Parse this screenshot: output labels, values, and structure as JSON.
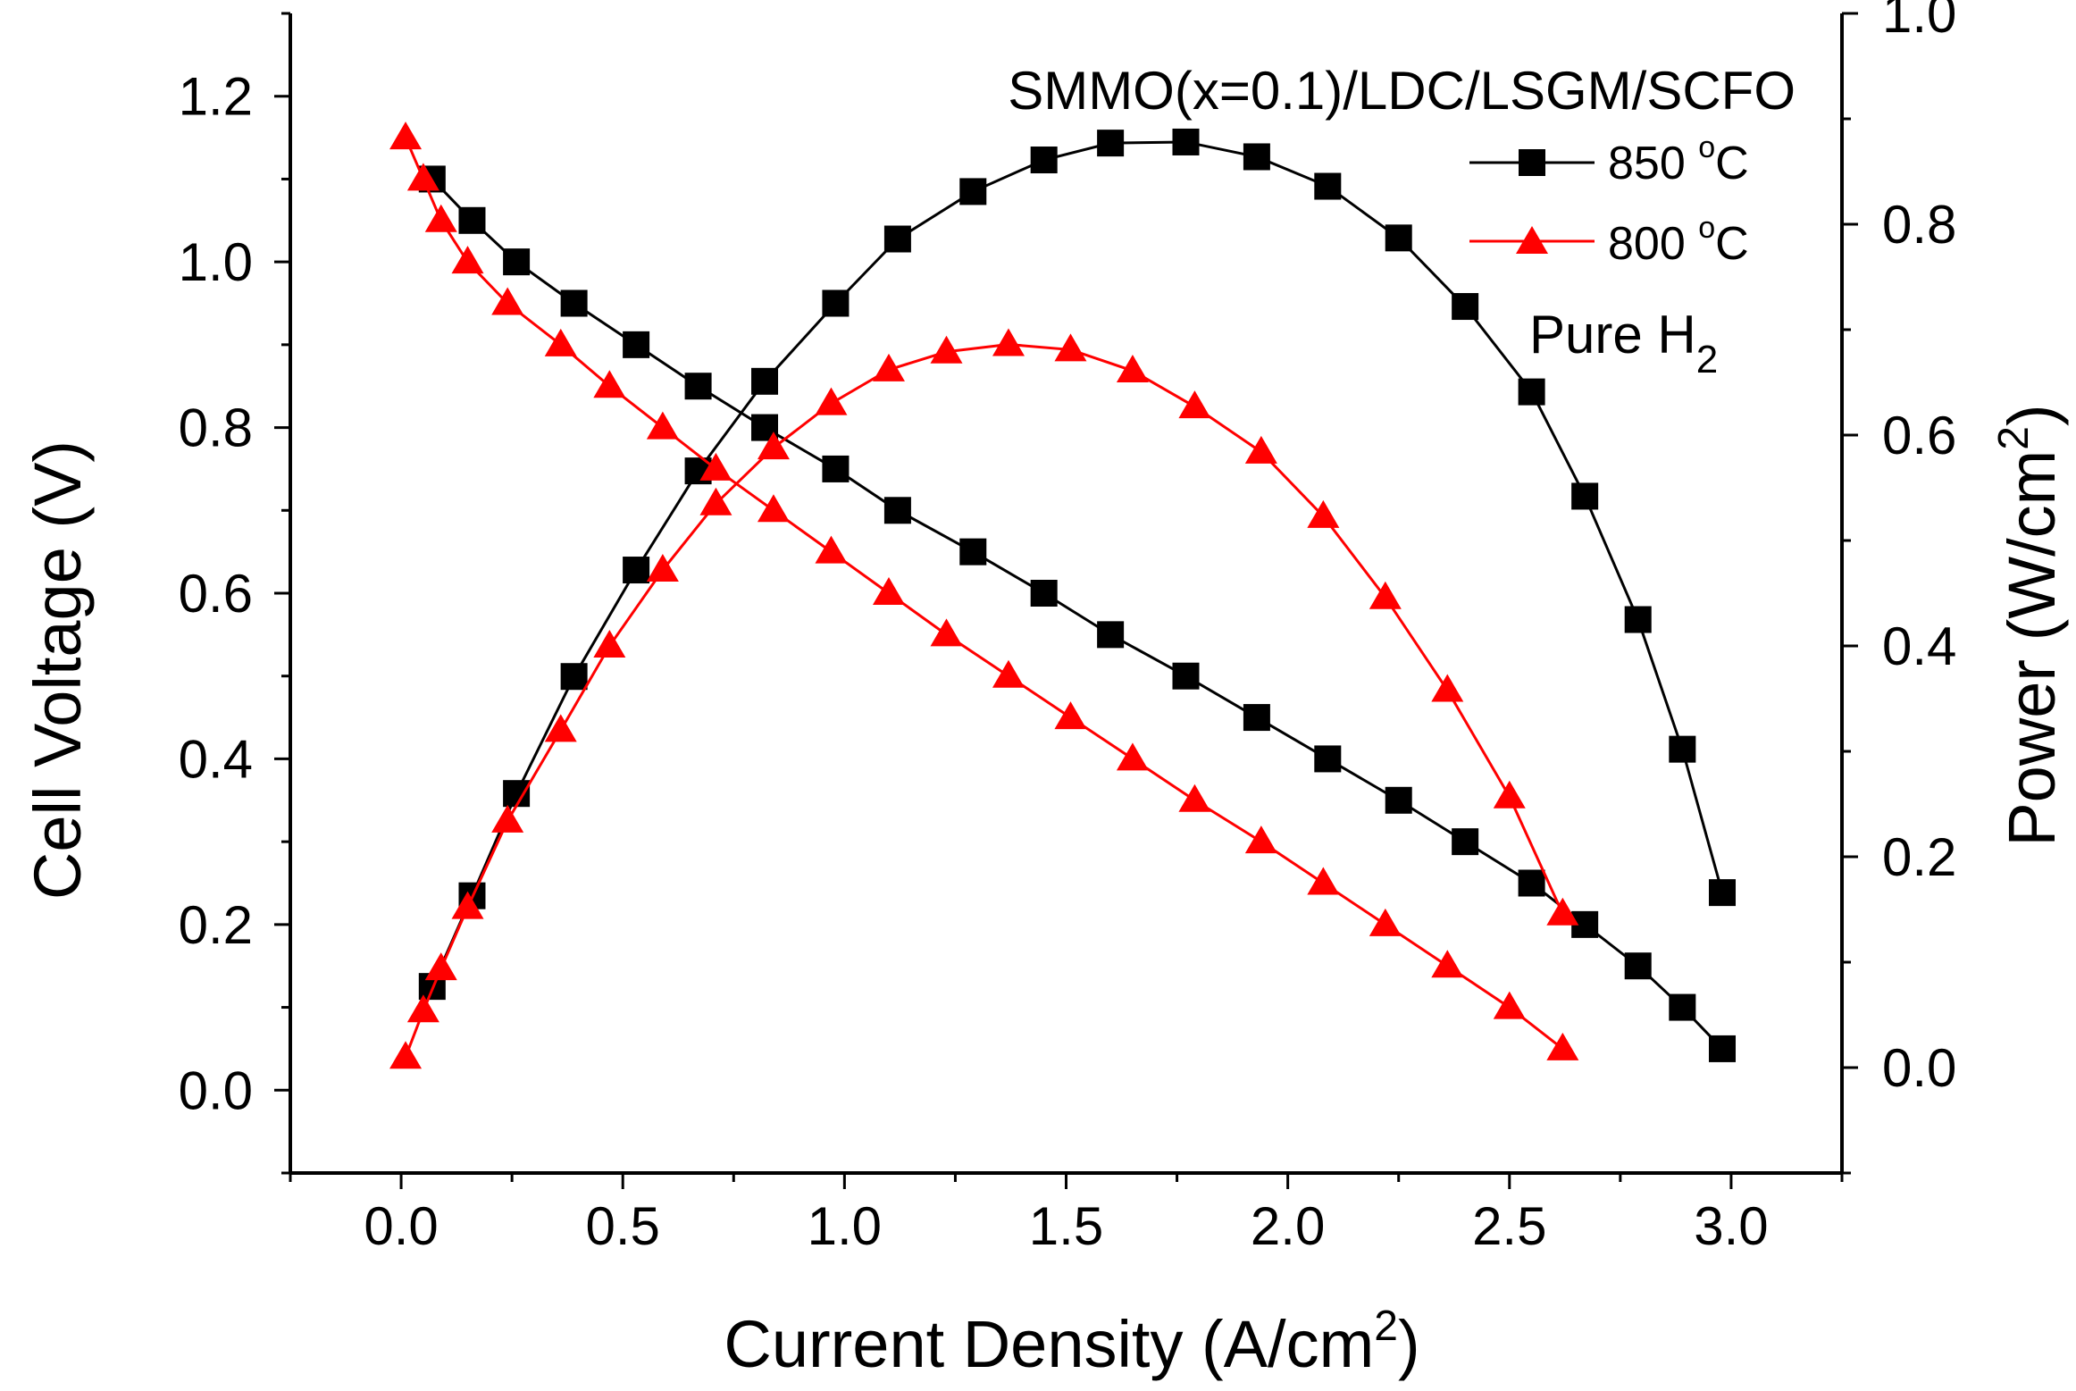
{
  "chart_data": {
    "type": "line",
    "title": "",
    "annotations": {
      "cell_label": "SMMO(x=0.1)/LDC/LSGM/SCFO",
      "fuel_label": "Pure H",
      "fuel_subscript": "2"
    },
    "x_axis": {
      "label": "Current Density (A/cm",
      "label_sup": "2",
      "label_end": ")",
      "range": [
        -0.25,
        3.25
      ],
      "ticks": [
        0.0,
        0.5,
        1.0,
        1.5,
        2.0,
        2.5,
        3.0
      ],
      "tick_labels": [
        "0.0",
        "0.5",
        "1.0",
        "1.5",
        "2.0",
        "2.5",
        "3.0"
      ]
    },
    "y_axis_left": {
      "label": "Cell Voltage (V)",
      "range": [
        -0.1,
        1.3
      ],
      "ticks": [
        0.0,
        0.2,
        0.4,
        0.6,
        0.8,
        1.0,
        1.2
      ],
      "tick_labels": [
        "0.0",
        "0.2",
        "0.4",
        "0.6",
        "0.8",
        "1.0",
        "1.2"
      ]
    },
    "y_axis_right": {
      "label": "Power (W/cm",
      "label_sup": "2",
      "label_end": ")",
      "range": [
        -0.1,
        1.0
      ],
      "ticks": [
        0.0,
        0.2,
        0.4,
        0.6,
        0.8,
        1.0
      ],
      "tick_labels": [
        "0.0",
        "0.2",
        "0.4",
        "0.6",
        "0.8",
        "1.0"
      ]
    },
    "legend": {
      "position": "top-right",
      "entries": [
        {
          "label": "850 ",
          "unit_sup": "o",
          "unit": "C",
          "color": "#000000",
          "marker": "square"
        },
        {
          "label": "800 ",
          "unit_sup": "o",
          "unit": "C",
          "color": "#ff0000",
          "marker": "triangle"
        }
      ]
    },
    "series": [
      {
        "name": "850 °C voltage",
        "axis": "left",
        "color": "#000000",
        "marker": "square",
        "x": [
          0.07,
          0.16,
          0.26,
          0.39,
          0.53,
          0.67,
          0.82,
          0.98,
          1.12,
          1.29,
          1.45,
          1.6,
          1.77,
          1.93,
          2.09,
          2.25,
          2.4,
          2.55,
          2.67,
          2.79,
          2.89,
          2.98
        ],
        "y": [
          1.1,
          1.05,
          1.0,
          0.95,
          0.9,
          0.85,
          0.8,
          0.75,
          0.7,
          0.65,
          0.6,
          0.55,
          0.5,
          0.45,
          0.4,
          0.35,
          0.3,
          0.25,
          0.2,
          0.15,
          0.1,
          0.05
        ]
      },
      {
        "name": "850 °C power",
        "axis": "right",
        "color": "#000000",
        "marker": "square",
        "x": [
          0.07,
          0.16,
          0.26,
          0.39,
          0.53,
          0.67,
          0.82,
          0.98,
          1.12,
          1.29,
          1.45,
          1.6,
          1.77,
          1.93,
          2.09,
          2.25,
          2.4,
          2.55,
          2.67,
          2.79,
          2.89,
          2.98
        ],
        "y": [
          0.077,
          0.163,
          0.26,
          0.371,
          0.472,
          0.566,
          0.651,
          0.725,
          0.786,
          0.831,
          0.861,
          0.877,
          0.878,
          0.864,
          0.836,
          0.787,
          0.722,
          0.641,
          0.542,
          0.425,
          0.302,
          0.166
        ]
      },
      {
        "name": "800 °C voltage",
        "axis": "left",
        "color": "#ff0000",
        "marker": "triangle",
        "x": [
          0.01,
          0.05,
          0.09,
          0.15,
          0.24,
          0.36,
          0.47,
          0.59,
          0.71,
          0.84,
          0.97,
          1.1,
          1.23,
          1.37,
          1.51,
          1.65,
          1.79,
          1.94,
          2.08,
          2.22,
          2.36,
          2.5,
          2.62
        ],
        "y": [
          1.15,
          1.1,
          1.05,
          1.0,
          0.95,
          0.9,
          0.85,
          0.8,
          0.75,
          0.7,
          0.65,
          0.6,
          0.55,
          0.5,
          0.45,
          0.4,
          0.35,
          0.3,
          0.25,
          0.2,
          0.15,
          0.1,
          0.05
        ]
      },
      {
        "name": "800 °C power",
        "axis": "right",
        "color": "#ff0000",
        "marker": "triangle",
        "x": [
          0.01,
          0.05,
          0.09,
          0.15,
          0.24,
          0.36,
          0.47,
          0.59,
          0.71,
          0.84,
          0.97,
          1.1,
          1.23,
          1.37,
          1.51,
          1.65,
          1.79,
          1.94,
          2.08,
          2.22,
          2.36,
          2.5,
          2.62
        ],
        "y": [
          0.01,
          0.054,
          0.094,
          0.152,
          0.234,
          0.32,
          0.4,
          0.472,
          0.535,
          0.588,
          0.63,
          0.662,
          0.679,
          0.686,
          0.681,
          0.661,
          0.627,
          0.584,
          0.523,
          0.446,
          0.358,
          0.257,
          0.146
        ]
      }
    ]
  }
}
